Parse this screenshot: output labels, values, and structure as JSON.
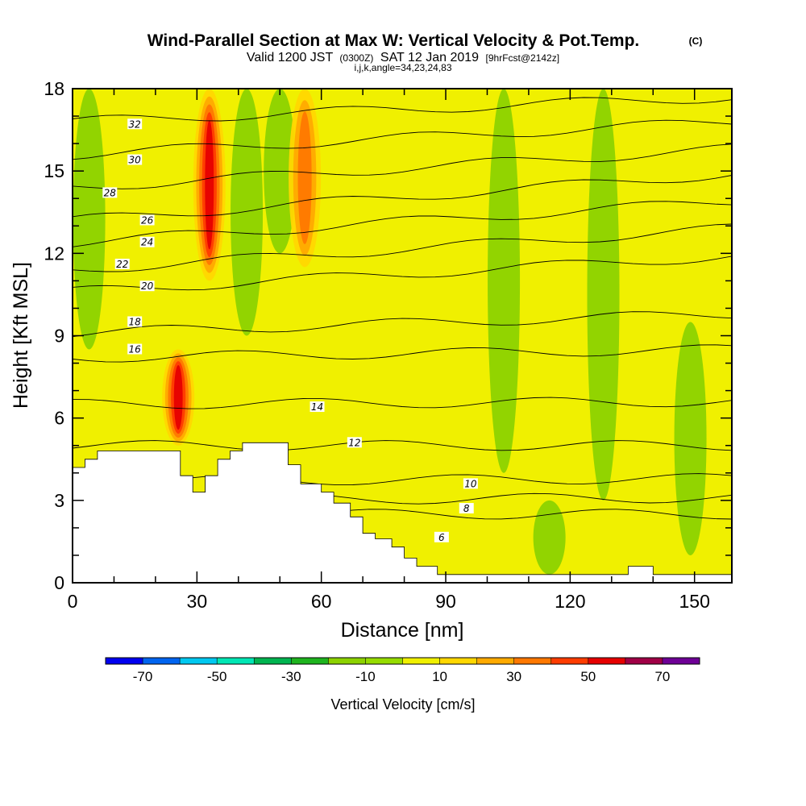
{
  "header": {
    "title": "Wind-Parallel Section at Max W: Vertical Velocity & Pot.Temp.",
    "copyright": "(C)",
    "valid_prefix": "Valid 1200 JST",
    "valid_utc": "(0300Z)",
    "valid_date": "SAT 12 Jan 2019",
    "forecast": "[9hrFcst@2142z]",
    "indices": "i,j,k,angle=34,23,24,83"
  },
  "chart_data": {
    "type": "heatmap",
    "xlabel": "Distance [nm]",
    "ylabel": "Height [Kft MSL]",
    "xlim": [
      0,
      159
    ],
    "ylim": [
      0,
      18
    ],
    "x_ticks": [
      0,
      30,
      60,
      90,
      120,
      150
    ],
    "y_ticks": [
      0,
      3,
      6,
      9,
      12,
      15,
      18
    ],
    "colorbar": {
      "title": "Vertical Velocity [cm/s]",
      "tick_labels": [
        -70,
        -50,
        -30,
        -10,
        10,
        30,
        50,
        70
      ],
      "bounds": [
        -80,
        -70,
        -60,
        -50,
        -40,
        -30,
        -20,
        -10,
        0,
        10,
        20,
        30,
        40,
        50,
        60,
        70,
        80
      ],
      "colors": [
        "#0000f0",
        "#0064f0",
        "#00c8f0",
        "#00e6b4",
        "#00b450",
        "#1eb41e",
        "#8cd200",
        "#96dc00",
        "#f0f000",
        "#ffd700",
        "#ffaa00",
        "#ff7800",
        "#ff3c00",
        "#e60000",
        "#a00046",
        "#6e0096"
      ]
    },
    "background_fill": "#f0f000",
    "updraft_columns": [
      {
        "x": 33,
        "y0": 11,
        "y1": 18,
        "peak": 50
      },
      {
        "x": 25.5,
        "y0": 5,
        "y1": 8.5,
        "peak": 50
      },
      {
        "x": 56,
        "y0": 11.5,
        "y1": 18,
        "peak": 30
      }
    ],
    "downdraft_columns": [
      {
        "x": 4,
        "y0": 8.5,
        "y1": 18,
        "peak": -10
      },
      {
        "x": 42,
        "y0": 9,
        "y1": 18,
        "peak": -10
      },
      {
        "x": 50,
        "y0": 12,
        "y1": 18,
        "peak": -10
      },
      {
        "x": 104,
        "y0": 4,
        "y1": 18,
        "peak": -10
      },
      {
        "x": 128,
        "y0": 3,
        "y1": 18,
        "peak": -10
      },
      {
        "x": 149,
        "y0": 1,
        "y1": 9.5,
        "peak": -10
      },
      {
        "x": 115,
        "y0": 0.3,
        "y1": 3,
        "peak": -10
      }
    ],
    "theta_contours": [
      {
        "level": 6,
        "y_left": 2.5,
        "y_right": 2.5,
        "label_x": 89,
        "label_y": 1.65
      },
      {
        "level": 8,
        "y_left": 3.0,
        "y_right": 3.1,
        "label_x": 95,
        "label_y": 2.7
      },
      {
        "level": 10,
        "y_left": 3.7,
        "y_right": 3.8,
        "label_x": 96,
        "label_y": 3.6
      },
      {
        "level": 12,
        "y_left": 5.0,
        "y_right": 5.0,
        "label_x": 68,
        "label_y": 5.1
      },
      {
        "level": 14,
        "y_left": 6.5,
        "y_right": 6.6,
        "label_x": 59,
        "label_y": 6.4
      },
      {
        "level": 16,
        "y_left": 8.2,
        "y_right": 8.5,
        "label_x": 15,
        "label_y": 8.5
      },
      {
        "level": 18,
        "y_left": 9.1,
        "y_right": 9.8,
        "label_x": 15,
        "label_y": 9.5
      },
      {
        "level": 20,
        "y_left": 10.6,
        "y_right": 11.9,
        "label_x": 18,
        "label_y": 10.8
      },
      {
        "level": 22,
        "y_left": 11.4,
        "y_right": 12.9,
        "label_x": 12,
        "label_y": 11.6
      },
      {
        "level": 24,
        "y_left": 12.4,
        "y_right": 13.9,
        "label_x": 18,
        "label_y": 12.4
      },
      {
        "level": 26,
        "y_left": 13.2,
        "y_right": 14.9,
        "label_x": 18,
        "label_y": 13.2
      },
      {
        "level": 28,
        "y_left": 14.4,
        "y_right": 15.8,
        "label_x": 9,
        "label_y": 14.2
      },
      {
        "level": 30,
        "y_left": 15.6,
        "y_right": 16.8,
        "label_x": 15,
        "label_y": 15.4
      },
      {
        "level": 32,
        "y_left": 16.8,
        "y_right": 17.7,
        "label_x": 15,
        "label_y": 16.7
      }
    ],
    "terrain": [
      [
        0,
        4.2
      ],
      [
        3,
        4.2
      ],
      [
        3,
        4.5
      ],
      [
        6,
        4.5
      ],
      [
        6,
        4.8
      ],
      [
        26,
        4.8
      ],
      [
        26,
        3.9
      ],
      [
        29,
        3.9
      ],
      [
        29,
        3.3
      ],
      [
        32,
        3.3
      ],
      [
        32,
        3.9
      ],
      [
        35,
        3.9
      ],
      [
        35,
        4.5
      ],
      [
        38,
        4.5
      ],
      [
        38,
        4.8
      ],
      [
        41,
        4.8
      ],
      [
        41,
        5.1
      ],
      [
        52,
        5.1
      ],
      [
        52,
        4.3
      ],
      [
        55,
        4.3
      ],
      [
        55,
        3.6
      ],
      [
        60,
        3.6
      ],
      [
        60,
        3.3
      ],
      [
        63,
        3.3
      ],
      [
        63,
        2.9
      ],
      [
        67,
        2.9
      ],
      [
        67,
        2.4
      ],
      [
        70,
        2.4
      ],
      [
        70,
        1.8
      ],
      [
        73,
        1.8
      ],
      [
        73,
        1.6
      ],
      [
        77,
        1.6
      ],
      [
        77,
        1.3
      ],
      [
        80,
        1.3
      ],
      [
        80,
        0.9
      ],
      [
        83,
        0.9
      ],
      [
        83,
        0.6
      ],
      [
        88,
        0.6
      ],
      [
        88,
        0.3
      ],
      [
        100,
        0.3
      ],
      [
        134,
        0.3
      ],
      [
        134,
        0.6
      ],
      [
        140,
        0.6
      ],
      [
        140,
        0.3
      ],
      [
        159,
        0.3
      ]
    ]
  }
}
